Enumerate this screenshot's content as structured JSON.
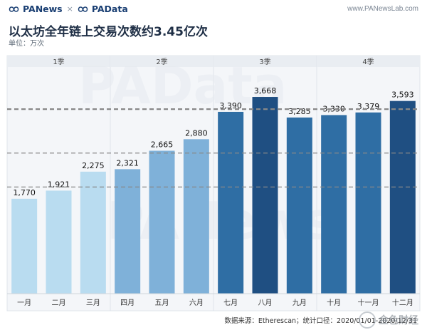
{
  "header": {
    "brand_primary": "PANews",
    "brand_separator": "×",
    "brand_secondary": "PAData",
    "site_url": "www.PANewsLab.com"
  },
  "title": "以太坊全年链上交易次数约3.45亿次",
  "unit_label": "单位：万次",
  "footer": "数据来源：Etherescan；统计口径：2020/01/01-2020/12/31",
  "watermark_text": "金色财经",
  "colors": {
    "q1": "#b9dcf0",
    "q2": "#7fb1d9",
    "q3": "#2f6ea4",
    "q3_peak": "#1f4f82",
    "q4": "#2f6ea4",
    "panel_bg": "#f4f6f9",
    "avg_line": "#888888"
  },
  "chart_data": {
    "type": "bar",
    "categories": [
      "一月",
      "二月",
      "三月",
      "四月",
      "五月",
      "六月",
      "七月",
      "八月",
      "九月",
      "十月",
      "十一月",
      "十二月"
    ],
    "values": [
      1770,
      1921,
      2275,
      2321,
      2665,
      2880,
      3390,
      3668,
      3285,
      3330,
      3379,
      3593
    ],
    "value_labels": [
      "1,770",
      "1,921",
      "2,275",
      "2,321",
      "2,665",
      "2,880",
      "3,390",
      "3,668",
      "3,285",
      "3,330",
      "3,379",
      "3,593"
    ],
    "groups": [
      {
        "label": "1季",
        "months": [
          0,
          1,
          2
        ]
      },
      {
        "label": "2季",
        "months": [
          3,
          4,
          5
        ]
      },
      {
        "label": "3季",
        "months": [
          6,
          7,
          8
        ]
      },
      {
        "label": "4季",
        "months": [
          9,
          10,
          11
        ]
      }
    ],
    "ylim": [
      0,
      4200
    ],
    "reference_lines": [
      {
        "value": 1989
      },
      {
        "value": 2622
      },
      {
        "value": 3448
      },
      {
        "value": 3434
      }
    ],
    "grid": false
  }
}
